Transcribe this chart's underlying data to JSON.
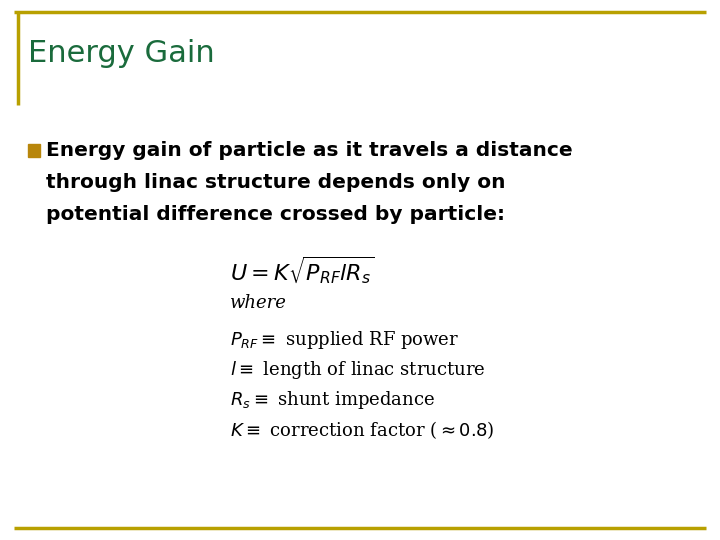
{
  "title": "Energy Gain",
  "title_color": "#1a6b3c",
  "background_color": "#ffffff",
  "border_color": "#b8a000",
  "bullet_color": "#b8860b",
  "bullet_text_lines": [
    "Energy gain of particle as it travels a distance",
    "through linac structure depends only on",
    "potential difference crossed by particle:"
  ],
  "where_text": "where",
  "definitions": [
    "$P_{RF} \\equiv$ supplied RF power",
    "$l \\equiv$ length of linac structure",
    "$R_s \\equiv$ shunt impedance",
    "$K \\equiv$ correction factor ($\\approx 0.8$)"
  ],
  "title_fontsize": 22,
  "bullet_fontsize": 14.5,
  "formula_fontsize": 14,
  "def_fontsize": 13,
  "where_fontsize": 13
}
